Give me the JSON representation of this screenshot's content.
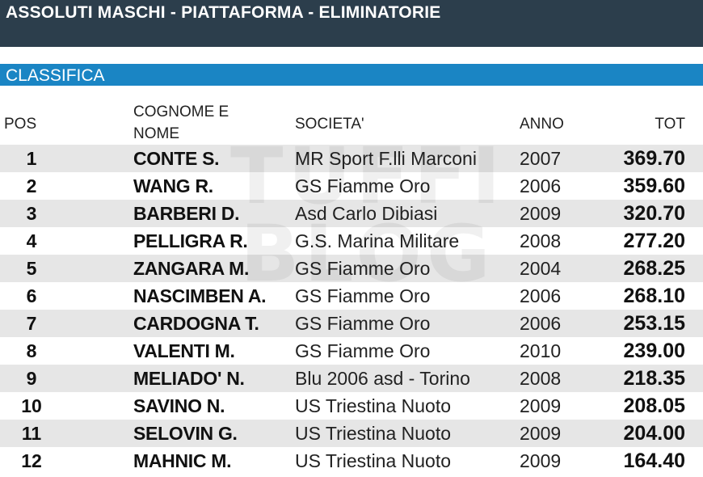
{
  "header": {
    "title": "ASSOLUTI MASCHI - PIATTAFORMA - ELIMINATORIE"
  },
  "section": {
    "title": "CLASSIFICA"
  },
  "watermark": {
    "line1": "TUFFI",
    "line2": "BLOG"
  },
  "columns": {
    "pos": "POS",
    "name_line1": "COGNOME E",
    "name_line2": "NOME",
    "club": "SOCIETA'",
    "year": "ANNO",
    "tot": "TOT"
  },
  "rows": [
    {
      "pos": "1",
      "name": "CONTE S.",
      "club": "MR Sport F.lli Marconi",
      "year": "2007",
      "tot": "369.70"
    },
    {
      "pos": "2",
      "name": "WANG R.",
      "club": "GS Fiamme Oro",
      "year": "2006",
      "tot": "359.60"
    },
    {
      "pos": "3",
      "name": "BARBERI D.",
      "club": "Asd Carlo Dibiasi",
      "year": "2009",
      "tot": "320.70"
    },
    {
      "pos": "4",
      "name": "PELLIGRA R.",
      "club": "G.S. Marina Militare",
      "year": "2008",
      "tot": "277.20"
    },
    {
      "pos": "5",
      "name": "ZANGARA M.",
      "club": "GS Fiamme Oro",
      "year": "2004",
      "tot": "268.25"
    },
    {
      "pos": "6",
      "name": "NASCIMBEN A.",
      "club": "GS Fiamme Oro",
      "year": "2006",
      "tot": "268.10"
    },
    {
      "pos": "7",
      "name": "CARDOGNA T.",
      "club": "GS Fiamme Oro",
      "year": "2006",
      "tot": "253.15"
    },
    {
      "pos": "8",
      "name": "VALENTI M.",
      "club": "GS Fiamme Oro",
      "year": "2010",
      "tot": "239.00"
    },
    {
      "pos": "9",
      "name": "MELIADO' N.",
      "club": "Blu 2006 asd - Torino",
      "year": "2008",
      "tot": "218.35"
    },
    {
      "pos": "10",
      "name": "SAVINO N.",
      "club": "US Triestina Nuoto",
      "year": "2009",
      "tot": "208.05"
    },
    {
      "pos": "11",
      "name": "SELOVIN G.",
      "club": "US Triestina Nuoto",
      "year": "2009",
      "tot": "204.00"
    },
    {
      "pos": "12",
      "name": "MAHNIC M.",
      "club": "US Triestina Nuoto",
      "year": "2009",
      "tot": "164.40"
    }
  ]
}
